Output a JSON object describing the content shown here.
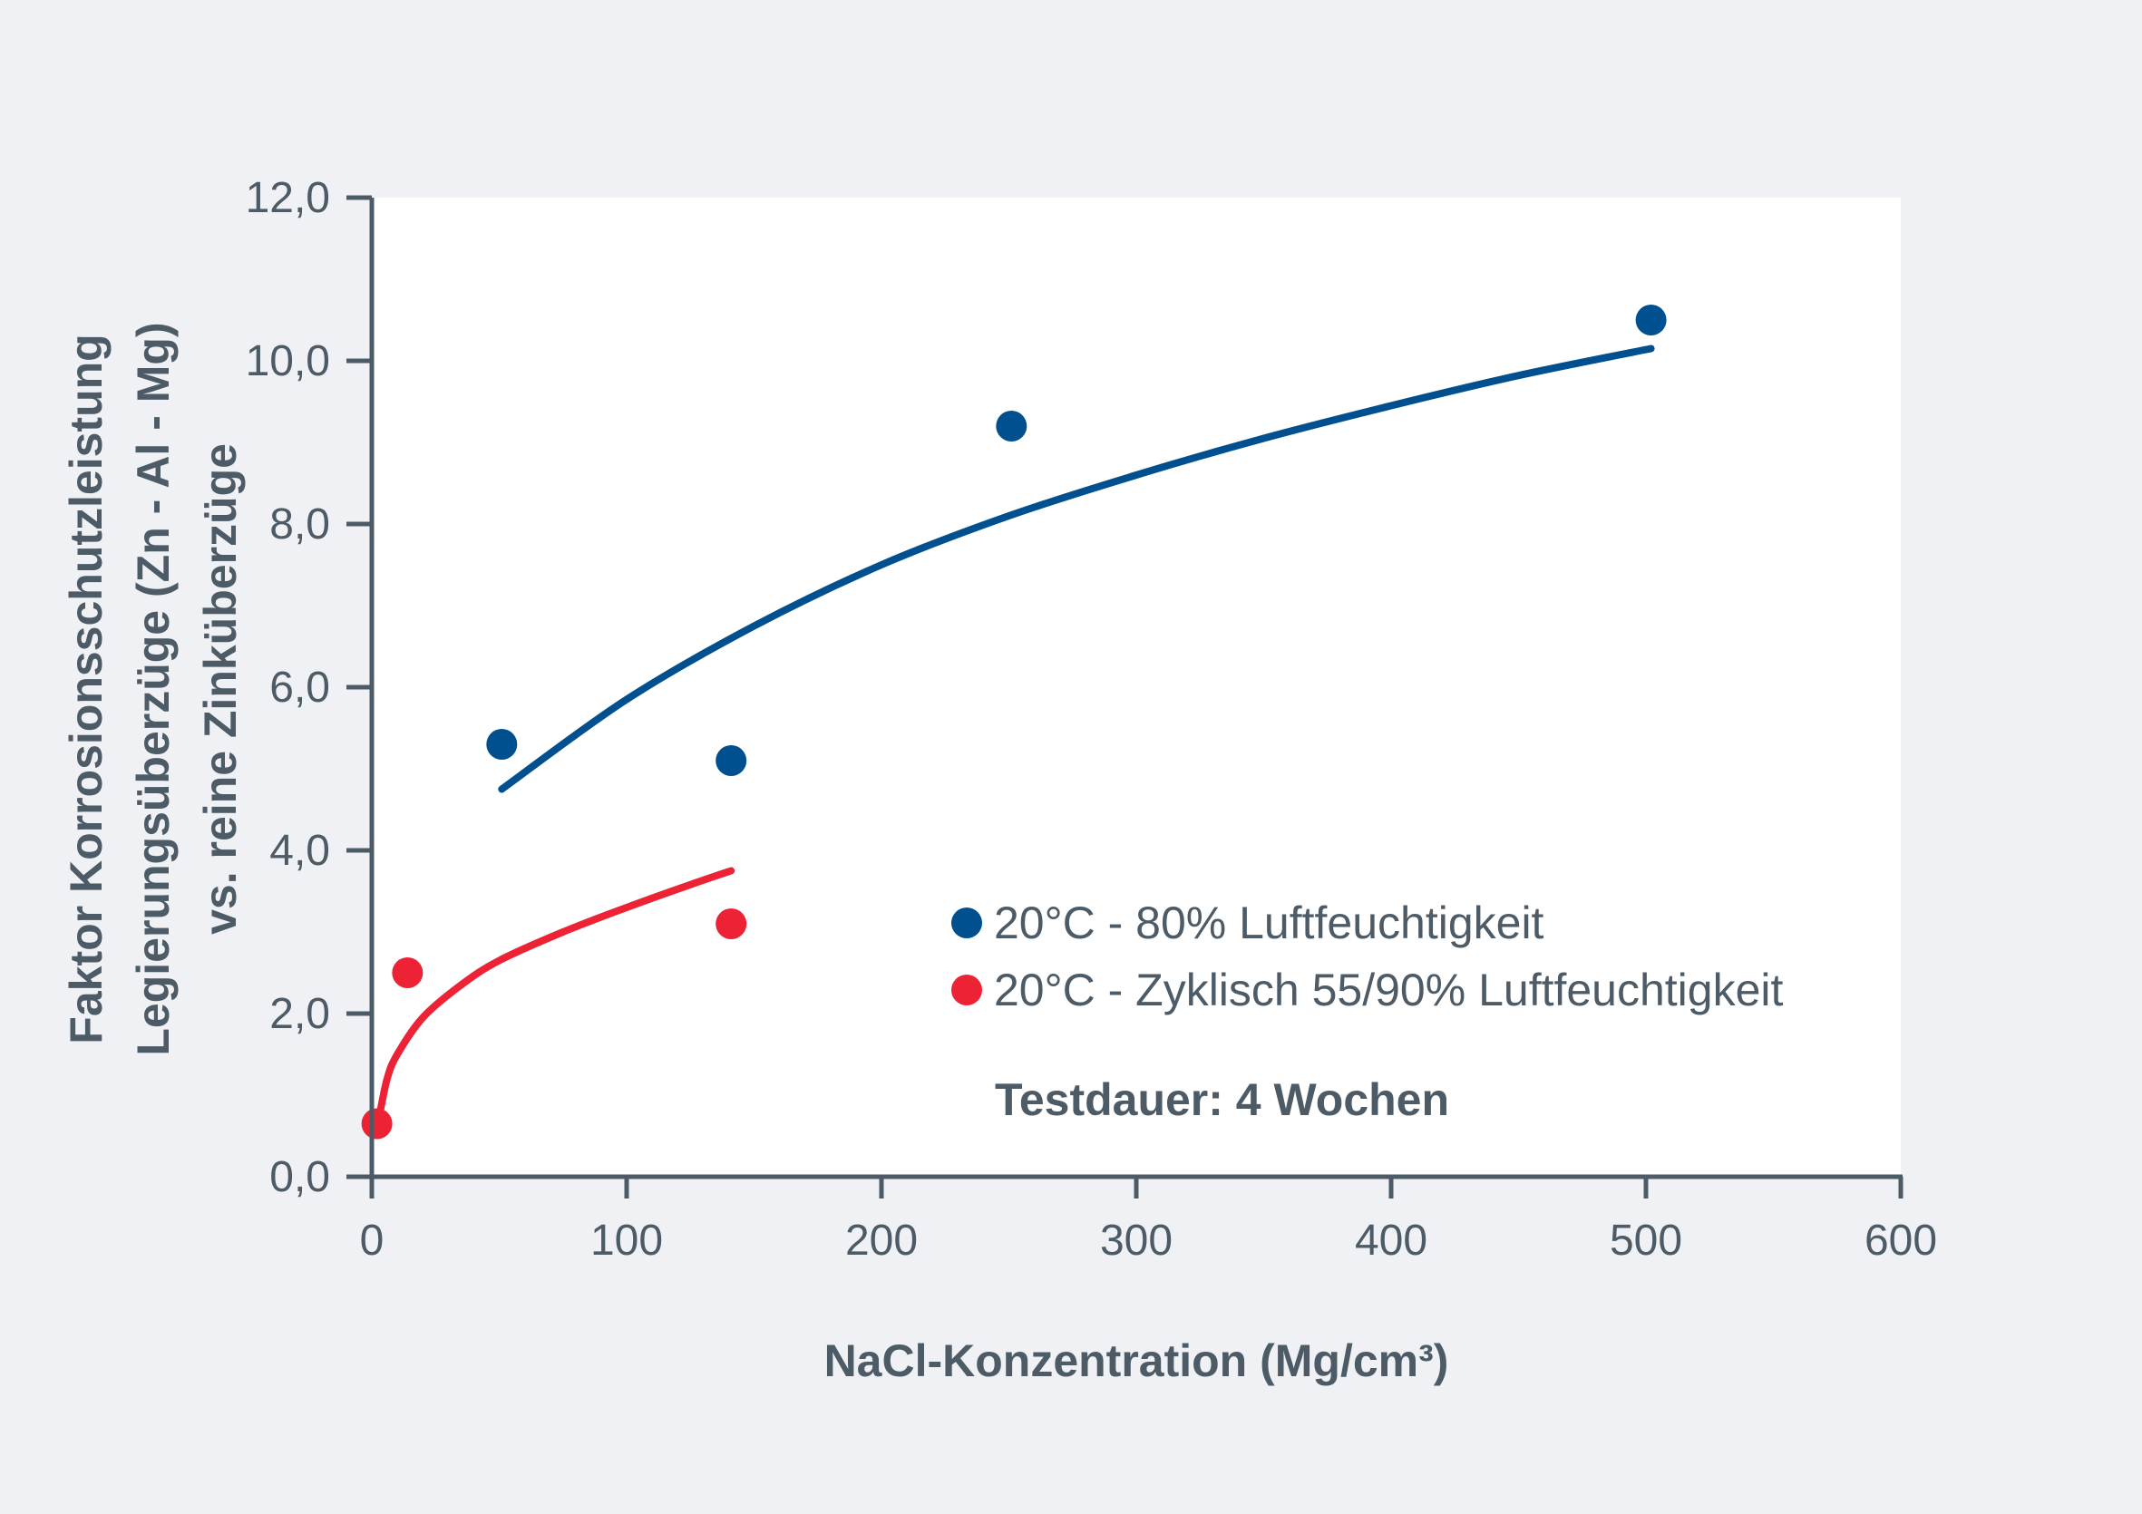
{
  "colors": {
    "background": "#eff1f5",
    "plot_background": "#ffffff",
    "axis": "#4d5b66",
    "text": "#4d5b66",
    "series_blue": "#00508f",
    "series_red": "#ee2235"
  },
  "chart_data": {
    "type": "scatter",
    "title": "",
    "xlabel": "NaCl-Konzentration (Mg/cm³)",
    "ylabel_lines": [
      "Faktor Korrosionsschutzleistung",
      "Legierungsüberzüge (Zn - Al - Mg)",
      "vs. reine Zinküberzüge"
    ],
    "xlim": [
      0,
      600
    ],
    "ylim": [
      0,
      12
    ],
    "x_ticks": [
      0,
      100,
      200,
      300,
      400,
      500,
      600
    ],
    "x_tick_labels": [
      "0",
      "100",
      "200",
      "300",
      "400",
      "500",
      "600"
    ],
    "y_ticks": [
      0,
      2,
      4,
      6,
      8,
      10,
      12
    ],
    "y_tick_labels": [
      "0,0",
      "2,0",
      "4,0",
      "6,0",
      "8,0",
      "10,0",
      "12,0"
    ],
    "grid": false,
    "legend_position": "bottom-right",
    "series": [
      {
        "name": "20°C - 80% Luftfeuchtigkeit",
        "color": "#00508f",
        "points": [
          {
            "x": 51,
            "y": 5.3
          },
          {
            "x": 141,
            "y": 5.1
          },
          {
            "x": 251,
            "y": 9.2
          },
          {
            "x": 502,
            "y": 10.5
          }
        ],
        "trend": [
          {
            "x": 51,
            "y": 4.75
          },
          {
            "x": 100,
            "y": 5.85
          },
          {
            "x": 150,
            "y": 6.75
          },
          {
            "x": 200,
            "y": 7.5
          },
          {
            "x": 250,
            "y": 8.1
          },
          {
            "x": 300,
            "y": 8.6
          },
          {
            "x": 350,
            "y": 9.05
          },
          {
            "x": 400,
            "y": 9.45
          },
          {
            "x": 450,
            "y": 9.82
          },
          {
            "x": 502,
            "y": 10.15
          }
        ]
      },
      {
        "name": "20°C - Zyklisch 55/90% Luftfeuchtigkeit",
        "color": "#ee2235",
        "points": [
          {
            "x": 2,
            "y": 0.65
          },
          {
            "x": 14,
            "y": 2.5
          },
          {
            "x": 141,
            "y": 3.1
          }
        ],
        "trend": [
          {
            "x": 3,
            "y": 0.75
          },
          {
            "x": 6,
            "y": 1.2
          },
          {
            "x": 10,
            "y": 1.5
          },
          {
            "x": 20,
            "y": 1.95
          },
          {
            "x": 35,
            "y": 2.35
          },
          {
            "x": 50,
            "y": 2.65
          },
          {
            "x": 75,
            "y": 3.0
          },
          {
            "x": 100,
            "y": 3.3
          },
          {
            "x": 125,
            "y": 3.58
          },
          {
            "x": 141,
            "y": 3.75
          }
        ]
      }
    ],
    "annotation": "Testdauer: 4 Wochen"
  }
}
